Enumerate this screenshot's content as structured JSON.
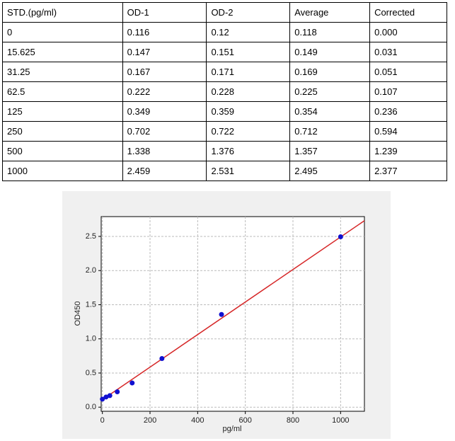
{
  "table": {
    "header": [
      "STD.(pg/ml)",
      "OD-1",
      "OD-2",
      "Average",
      "Corrected"
    ],
    "rows": [
      [
        "0",
        "0.116",
        "0.12",
        "0.118",
        "0.000"
      ],
      [
        "15.625",
        "0.147",
        "0.151",
        "0.149",
        "0.031"
      ],
      [
        "31.25",
        "0.167",
        "0.171",
        "0.169",
        "0.051"
      ],
      [
        "62.5",
        "0.222",
        "0.228",
        "0.225",
        "0.107"
      ],
      [
        "125",
        "0.349",
        "0.359",
        "0.354",
        "0.236"
      ],
      [
        "250",
        "0.702",
        "0.722",
        "0.712",
        "0.594"
      ],
      [
        "500",
        "1.338",
        "1.376",
        "1.357",
        "1.239"
      ],
      [
        "1000",
        "2.459",
        "2.531",
        "2.495",
        "2.377"
      ]
    ]
  },
  "chart_data": {
    "type": "scatter",
    "x_label": "pg/ml",
    "y_label": "OD450",
    "xlim": [
      -5,
      1100
    ],
    "ylim": [
      -0.06,
      2.79
    ],
    "xticks": [
      0,
      200,
      400,
      600,
      800,
      1000
    ],
    "yticks": [
      {
        "value": 0,
        "label": "0.0"
      },
      0.5,
      {
        "value": 1,
        "label": "1.0"
      },
      1.5,
      {
        "value": 2,
        "label": "2.0"
      },
      2.5
    ],
    "grid": true,
    "series": [
      {
        "type": "scatter",
        "color": "#1010d0",
        "x": [
          0,
          15.625,
          31.25,
          62.5,
          125,
          250,
          500,
          1000
        ],
        "values": [
          0.118,
          0.149,
          0.169,
          0.225,
          0.354,
          0.712,
          1.357,
          2.495
        ]
      },
      {
        "type": "line",
        "color": "#d62728",
        "x": [
          0,
          1100
        ],
        "values": [
          0.11,
          2.73
        ]
      }
    ]
  }
}
